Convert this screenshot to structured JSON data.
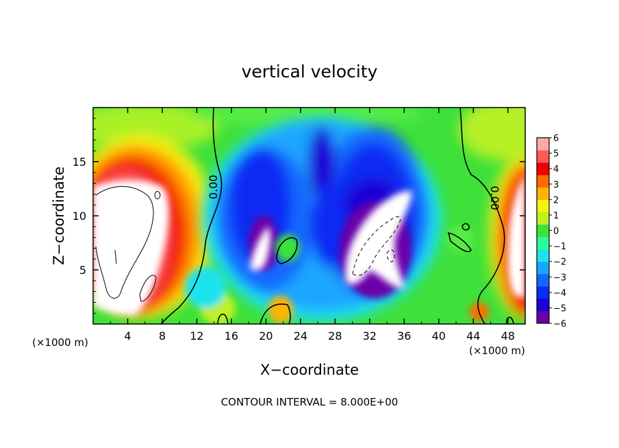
{
  "chart_data": {
    "type": "heatmap",
    "title": "vertical velocity",
    "xlabel": "X−coordinate",
    "ylabel": "Z−coordinate",
    "x_unit_label": "(×1000 m)",
    "z_unit_label": "(×1000 m)",
    "xlim": [
      0,
      50
    ],
    "ylim": [
      0,
      20
    ],
    "x_ticks": [
      4,
      8,
      12,
      16,
      20,
      24,
      28,
      32,
      36,
      40,
      44,
      48
    ],
    "x_tick_labels": [
      "4",
      "8",
      "12",
      "16",
      "20",
      "24",
      "28",
      "32",
      "36",
      "40",
      "44",
      "48"
    ],
    "y_ticks": [
      5,
      10,
      15
    ],
    "y_tick_labels": [
      "5",
      "10",
      "15"
    ],
    "contour_labels": [
      {
        "text": "0.00",
        "x": 14.2,
        "z": 12.7
      },
      {
        "text": "0.00",
        "x": 46.4,
        "z": 11.7
      }
    ],
    "colorbar": {
      "min": -6,
      "max": 6,
      "ticks": [
        6,
        5,
        4,
        3,
        2,
        1,
        0,
        -1,
        -2,
        -3,
        -4,
        -5,
        -6
      ],
      "tick_labels": [
        "6",
        "5",
        "4",
        "3",
        "2",
        "1",
        "0",
        "−1",
        "−2",
        "−3",
        "−4",
        "−5",
        "−6"
      ],
      "colors": [
        "#6a00a8",
        "#1c00d6",
        "#0b2cf4",
        "#1467ff",
        "#1aa6ff",
        "#1ee3ee",
        "#2dfc9c",
        "#3ae23a",
        "#c0f020",
        "#f3f312",
        "#ffb400",
        "#ff6a00",
        "#f00000",
        "#ff5a5a",
        "#ffa8a8"
      ]
    },
    "features": [
      {
        "kind": "updraft",
        "x": 4.5,
        "z": 8,
        "max": 6
      },
      {
        "kind": "updraft",
        "x": 48.5,
        "z": 6,
        "max": 6
      },
      {
        "kind": "downdraft",
        "x": 33,
        "z": 7.5,
        "min": -6
      },
      {
        "kind": "downdraft",
        "x": 19,
        "z": 7,
        "min": -6
      }
    ],
    "note": "CONTOUR INTERVAL = 8.000E+00"
  }
}
